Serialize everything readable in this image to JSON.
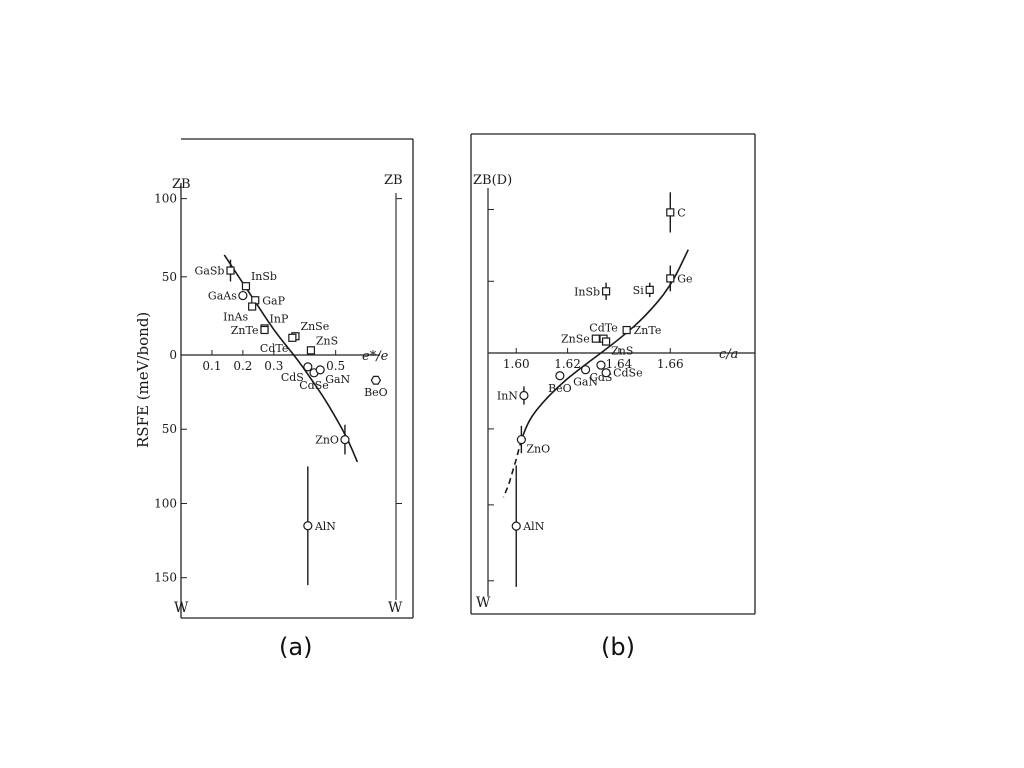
{
  "figure": {
    "panel_a_caption": "(a)",
    "panel_b_caption": "(b)"
  },
  "chart_data": [
    {
      "type": "scatter",
      "title": "",
      "ylabel": "RSFE (meV/bond)",
      "xlabel": "e*/e",
      "top_label_left": "ZB",
      "top_label_right": "ZB",
      "bottom_label_left": "W",
      "bottom_label_right": "W",
      "xlim": [
        0,
        0.75
      ],
      "ylim": [
        -165,
        110
      ],
      "y_note": "positive = ZB side, negative = W side",
      "xticks": [
        {
          "value": 0.1,
          "label": "0.1"
        },
        {
          "value": 0.2,
          "label": "0.2"
        },
        {
          "value": 0.3,
          "label": "0.3"
        },
        {
          "value": 0.5,
          "label": "0.5"
        }
      ],
      "yticks": [
        {
          "value": 100,
          "label": "100"
        },
        {
          "value": 50,
          "label": "50"
        },
        {
          "value": 0,
          "label": "0"
        },
        {
          "value": -50,
          "label": "50"
        },
        {
          "value": -100,
          "label": "100"
        },
        {
          "value": -150,
          "label": "150"
        }
      ],
      "points": [
        {
          "name": "GaSb",
          "x": 0.16,
          "y": 54,
          "marker": "square",
          "err": 7,
          "label_side": "left"
        },
        {
          "name": "InSb",
          "x": 0.21,
          "y": 44,
          "marker": "square",
          "err": 0,
          "label_side": "up-right"
        },
        {
          "name": "GaAs",
          "x": 0.2,
          "y": 38,
          "marker": "circle",
          "err": 0,
          "label_side": "left"
        },
        {
          "name": "GaP",
          "x": 0.24,
          "y": 35,
          "marker": "square",
          "err": 0,
          "label_side": "right"
        },
        {
          "name": "InAs",
          "x": 0.23,
          "y": 31,
          "marker": "square",
          "err": 0,
          "label_side": "below-left"
        },
        {
          "name": "InP",
          "x": 0.27,
          "y": 17,
          "marker": "square",
          "err": 0,
          "label_side": "up-right"
        },
        {
          "name": "ZnTe",
          "x": 0.27,
          "y": 16,
          "marker": "square",
          "err": 0,
          "label_side": "left"
        },
        {
          "name": "ZnSe",
          "x": 0.37,
          "y": 12,
          "marker": "square",
          "err": 0,
          "label_side": "up-right"
        },
        {
          "name": "CdTe",
          "x": 0.36,
          "y": 11,
          "marker": "square",
          "err": 0,
          "label_side": "below-left"
        },
        {
          "name": "ZnS",
          "x": 0.42,
          "y": 3,
          "marker": "square",
          "err": 0,
          "label_side": "up-right"
        },
        {
          "name": "CdS",
          "x": 0.41,
          "y": -8,
          "marker": "circle",
          "err": 0,
          "label_side": "below-left"
        },
        {
          "name": "CdSe",
          "x": 0.43,
          "y": -12,
          "marker": "circle",
          "err": 0,
          "label_side": "below"
        },
        {
          "name": "GaN",
          "x": 0.45,
          "y": -10,
          "marker": "circle",
          "err": 0,
          "label_side": "below-right"
        },
        {
          "name": "BeO",
          "x": 0.63,
          "y": -17,
          "marker": "hexagon",
          "err": 0,
          "label_side": "below"
        },
        {
          "name": "ZnO",
          "x": 0.53,
          "y": -57,
          "marker": "circle",
          "err": 10,
          "label_side": "left"
        },
        {
          "name": "AlN",
          "x": 0.41,
          "y": -115,
          "marker": "circle",
          "err": 40,
          "label_side": "right"
        }
      ],
      "fit_curve": [
        [
          0.14,
          64
        ],
        [
          0.18,
          52
        ],
        [
          0.22,
          40
        ],
        [
          0.26,
          28
        ],
        [
          0.3,
          16
        ],
        [
          0.34,
          6
        ],
        [
          0.38,
          -4
        ],
        [
          0.42,
          -16
        ],
        [
          0.46,
          -28
        ],
        [
          0.5,
          -42
        ],
        [
          0.54,
          -57
        ],
        [
          0.57,
          -72
        ]
      ]
    },
    {
      "type": "scatter",
      "title": "",
      "ylabel": "",
      "xlabel": "c/a",
      "top_label_left": "ZB(D)",
      "bottom_label_left": "W",
      "xlim": [
        1.589,
        1.693
      ],
      "ylim": [
        -160,
        115
      ],
      "xticks": [
        {
          "value": 1.6,
          "label": "1.60"
        },
        {
          "value": 1.62,
          "label": "1.62"
        },
        {
          "value": 1.64,
          "label": "1.64"
        },
        {
          "value": 1.66,
          "label": "1.66"
        }
      ],
      "points": [
        {
          "name": "C",
          "x": 1.66,
          "y": 98,
          "marker": "square",
          "err": 14,
          "label_side": "right"
        },
        {
          "name": "InSb",
          "x": 1.635,
          "y": 43,
          "marker": "square",
          "err": 6,
          "label_side": "left"
        },
        {
          "name": "Si",
          "x": 1.652,
          "y": 44,
          "marker": "square",
          "err": 5,
          "label_side": "left"
        },
        {
          "name": "Ge",
          "x": 1.66,
          "y": 52,
          "marker": "square",
          "err": 9,
          "label_side": "right"
        },
        {
          "name": "CdTe",
          "x": 1.634,
          "y": 10,
          "marker": "square",
          "err": 0,
          "label_side": "above"
        },
        {
          "name": "ZnTe",
          "x": 1.643,
          "y": 16,
          "marker": "square",
          "err": 0,
          "label_side": "right"
        },
        {
          "name": "ZnSe",
          "x": 1.631,
          "y": 10,
          "marker": "square",
          "err": 0,
          "label_side": "left"
        },
        {
          "name": "ZnS",
          "x": 1.635,
          "y": 8,
          "marker": "square",
          "err": 0,
          "label_side": "below-right"
        },
        {
          "name": "InN",
          "x": 1.603,
          "y": -28,
          "marker": "circle",
          "err": 6,
          "label_side": "left"
        },
        {
          "name": "BeO",
          "x": 1.617,
          "y": -15,
          "marker": "circle",
          "err": 0,
          "label_side": "below"
        },
        {
          "name": "GaN",
          "x": 1.627,
          "y": -11,
          "marker": "circle",
          "err": 0,
          "label_side": "below"
        },
        {
          "name": "CdS",
          "x": 1.633,
          "y": -8,
          "marker": "circle",
          "err": 0,
          "label_side": "below"
        },
        {
          "name": "CdSe",
          "x": 1.635,
          "y": -13,
          "marker": "circle",
          "err": 0,
          "label_side": "right"
        },
        {
          "name": "ZnO",
          "x": 1.602,
          "y": -57,
          "marker": "circle",
          "err": 9,
          "label_side": "below-right"
        },
        {
          "name": "AlN",
          "x": 1.6,
          "y": -114,
          "marker": "circle",
          "err": 40,
          "label_side": "right"
        }
      ],
      "fit_curve": [
        [
          1.602,
          -57
        ],
        [
          1.605,
          -44
        ],
        [
          1.61,
          -33
        ],
        [
          1.617,
          -21
        ],
        [
          1.625,
          -10
        ],
        [
          1.633,
          0
        ],
        [
          1.641,
          11
        ],
        [
          1.65,
          25
        ],
        [
          1.66,
          46
        ],
        [
          1.667,
          72
        ]
      ],
      "dashed_curve": [
        [
          1.602,
          -57
        ],
        [
          1.6,
          -70
        ],
        [
          1.597,
          -87
        ],
        [
          1.595,
          -95
        ]
      ]
    }
  ]
}
